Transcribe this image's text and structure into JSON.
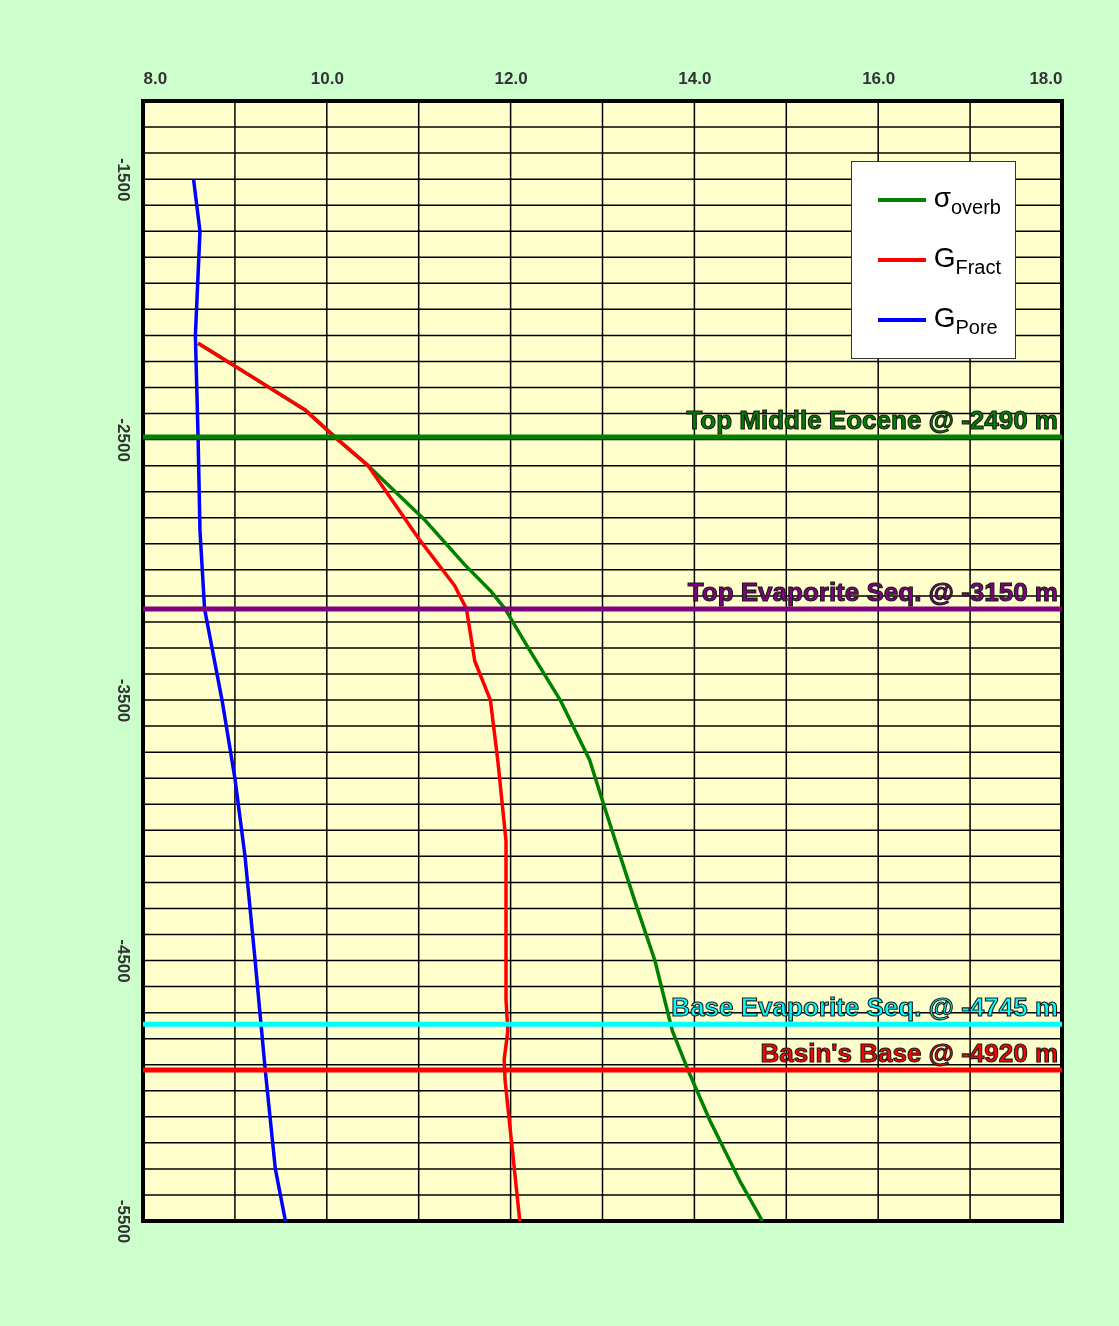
{
  "chart_data": {
    "type": "line",
    "orientation": "horizontal",
    "xlim": [
      8,
      18
    ],
    "xticks": [
      {
        "value": 8,
        "label": "8.0"
      },
      {
        "value": 9,
        "label": null
      },
      {
        "value": 10,
        "label": "10.0"
      },
      {
        "value": 11,
        "label": null
      },
      {
        "value": 12,
        "label": "12.0"
      },
      {
        "value": 13,
        "label": null
      },
      {
        "value": 14,
        "label": "14.0"
      },
      {
        "value": 15,
        "label": null
      },
      {
        "value": 16,
        "label": "16.0"
      },
      {
        "value": 17,
        "label": null
      },
      {
        "value": 18,
        "label": "18.0"
      }
    ],
    "ylim": [
      -5500,
      -1200
    ],
    "yticks": [
      {
        "value": -1200,
        "label": null
      },
      {
        "value": -1300,
        "label": null
      },
      {
        "value": -1400,
        "label": null
      },
      -1500,
      {
        "value": -1600,
        "label": null
      },
      {
        "value": -1700,
        "label": null
      },
      {
        "value": -1800,
        "label": null
      },
      {
        "value": -1900,
        "label": null
      },
      {
        "value": -2000,
        "label": null
      },
      {
        "value": -2100,
        "label": null
      },
      {
        "value": -2200,
        "label": null
      },
      {
        "value": -2300,
        "label": null
      },
      {
        "value": -2400,
        "label": null
      },
      -2500,
      {
        "value": -2600,
        "label": null
      },
      {
        "value": -2700,
        "label": null
      },
      {
        "value": -2800,
        "label": null
      },
      {
        "value": -2900,
        "label": null
      },
      {
        "value": -3000,
        "label": null
      },
      {
        "value": -3100,
        "label": null
      },
      {
        "value": -3200,
        "label": null
      },
      {
        "value": -3300,
        "label": null
      },
      {
        "value": -3400,
        "label": null
      },
      -3500,
      {
        "value": -3600,
        "label": null
      },
      {
        "value": -3700,
        "label": null
      },
      {
        "value": -3800,
        "label": null
      },
      {
        "value": -3900,
        "label": null
      },
      {
        "value": -4000,
        "label": null
      },
      {
        "value": -4100,
        "label": null
      },
      {
        "value": -4200,
        "label": null
      },
      {
        "value": -4300,
        "label": null
      },
      {
        "value": -4400,
        "label": null
      },
      -4500,
      {
        "value": -4600,
        "label": null
      },
      {
        "value": -4700,
        "label": null
      },
      {
        "value": -4800,
        "label": null
      },
      {
        "value": -4900,
        "label": null
      },
      {
        "value": -5000,
        "label": null
      },
      {
        "value": -5100,
        "label": null
      },
      {
        "value": -5200,
        "label": null
      },
      {
        "value": -5300,
        "label": null
      },
      {
        "value": -5400,
        "label": null
      },
      -5500
    ],
    "grid": true,
    "legend": "top right",
    "line_style": "solid",
    "marker": "none",
    "series": [
      {
        "name": "σ$_{overb}$",
        "color": "#008000",
        "x": [
          -2130,
          -2385,
          -2500,
          -2600,
          -2810,
          -2980,
          -3080,
          -3150,
          -3310,
          -3500,
          -3730,
          -3920,
          -4270,
          -4500,
          -4770,
          -4920,
          -5115,
          -5350,
          -5500
        ],
        "values": [
          8.6,
          9.76,
          10.12,
          10.45,
          11.07,
          11.5,
          11.78,
          11.94,
          12.21,
          12.54,
          12.86,
          13.03,
          13.35,
          13.57,
          13.76,
          13.93,
          14.17,
          14.5,
          14.74
        ]
      },
      {
        "name": "G$_{Fract}$",
        "color": "#ff0000",
        "x": [
          -2130,
          -2385,
          -2500,
          -2600,
          -2885,
          -3060,
          -3150,
          -3350,
          -3500,
          -3730,
          -4040,
          -4650,
          -4770,
          -4880,
          -4960,
          -5230,
          -5500
        ],
        "values": [
          8.6,
          9.76,
          10.12,
          10.45,
          11.01,
          11.39,
          11.52,
          11.61,
          11.78,
          11.86,
          11.95,
          11.95,
          11.97,
          11.93,
          11.94,
          12.02,
          12.1
        ]
      },
      {
        "name": "G$_{Pore}$",
        "color": "#0000ff",
        "x": [
          -1500,
          -1700,
          -2100,
          -2500,
          -2850,
          -3150,
          -3500,
          -3800,
          -4100,
          -4500,
          -4920,
          -5300,
          -5500
        ],
        "values": [
          8.55,
          8.62,
          8.57,
          8.6,
          8.62,
          8.67,
          8.86,
          9.0,
          9.11,
          9.22,
          9.33,
          9.44,
          9.55
        ]
      }
    ],
    "ref_lines": [
      {
        "axis": "y",
        "value": -2490,
        "label": "Top Middle Eocene @ -2490 m",
        "color": "#008000"
      },
      {
        "axis": "y",
        "value": -3150,
        "label": "Top Evaporite Seq. @ -3150 m",
        "color": "#800080"
      },
      {
        "axis": "y",
        "value": -4745,
        "label": "Base Evaporite Seq. @ -4745 m",
        "color": "#00ffff"
      },
      {
        "axis": "y",
        "value": -4920,
        "label": "Basin's Base @ -4920 m",
        "color": "#ff0000"
      }
    ]
  }
}
